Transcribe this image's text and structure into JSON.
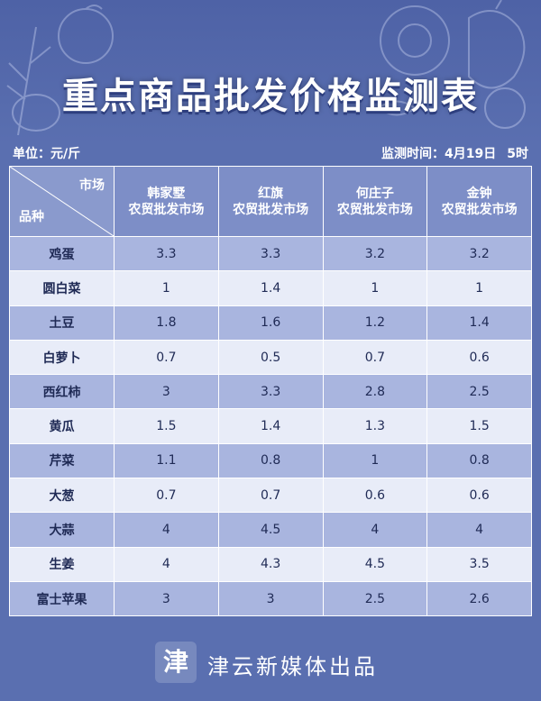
{
  "title": "重点商品批发价格监测表",
  "unit_label": "单位：元/斤",
  "monitor_time": "监测时间：4月19日",
  "monitor_hour": "5时",
  "corner": {
    "top": "市场",
    "bottom": "品种"
  },
  "columns": [
    {
      "line1": "韩家墅",
      "line2": "农贸批发市场"
    },
    {
      "line1": "红旗",
      "line2": "农贸批发市场"
    },
    {
      "line1": "何庄子",
      "line2": "农贸批发市场"
    },
    {
      "line1": "金钟",
      "line2": "农贸批发市场"
    }
  ],
  "rows": [
    {
      "name": "鸡蛋",
      "values": [
        "3.3",
        "3.3",
        "3.2",
        "3.2"
      ]
    },
    {
      "name": "圆白菜",
      "values": [
        "1",
        "1.4",
        "1",
        "1"
      ]
    },
    {
      "name": "土豆",
      "values": [
        "1.8",
        "1.6",
        "1.2",
        "1.4"
      ]
    },
    {
      "name": "白萝卜",
      "values": [
        "0.7",
        "0.5",
        "0.7",
        "0.6"
      ]
    },
    {
      "name": "西红柿",
      "values": [
        "3",
        "3.3",
        "2.8",
        "2.5"
      ]
    },
    {
      "name": "黄瓜",
      "values": [
        "1.5",
        "1.4",
        "1.3",
        "1.5"
      ]
    },
    {
      "name": "芹菜",
      "values": [
        "1.1",
        "0.8",
        "1",
        "0.8"
      ]
    },
    {
      "name": "大葱",
      "values": [
        "0.7",
        "0.7",
        "0.6",
        "0.6"
      ]
    },
    {
      "name": "大蒜",
      "values": [
        "4",
        "4.5",
        "4",
        "4"
      ]
    },
    {
      "name": "生姜",
      "values": [
        "4",
        "4.3",
        "4.5",
        "3.5"
      ]
    },
    {
      "name": "富士苹果",
      "values": [
        "3",
        "3",
        "2.5",
        "2.6"
      ]
    }
  ],
  "footer": {
    "logo_char": "津",
    "brand": "津云新媒体出品"
  },
  "colors": {
    "background": "#5a6fb0",
    "header_row": "#7d8ec7",
    "row_odd": "#a9b5df",
    "row_even": "#e8ecf8"
  }
}
